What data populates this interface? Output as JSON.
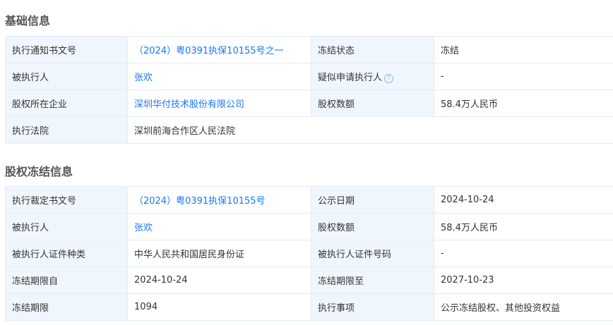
{
  "basic": {
    "title": "基础信息",
    "rows": [
      {
        "l1": "执行通知书文号",
        "v1": "（2024）粤0391执保10155号之一",
        "l2": "冻结状态",
        "v2": "冻结"
      },
      {
        "l1": "被执行人",
        "v1": "张欢",
        "l2": "疑似申请执行人",
        "v2": "-"
      },
      {
        "l1": "股权所在企业",
        "v1": "深圳华付技术股份有限公司",
        "l2": "股权数额",
        "v2": "58.4万人民币"
      },
      {
        "l1": "执行法院",
        "v1": "深圳前海合作区人民法院"
      }
    ],
    "help_icon": "question-circle-icon",
    "help_glyph": "?"
  },
  "freeze": {
    "title": "股权冻结信息",
    "rows": [
      {
        "l1": "执行裁定书文号",
        "v1": "（2024）粤0391执保10155号",
        "l2": "公示日期",
        "v2": "2024-10-24"
      },
      {
        "l1": "被执行人",
        "v1": "张欢",
        "l2": "股权数额",
        "v2": "58.4万人民币"
      },
      {
        "l1": "被执行人证件种类",
        "v1": "中华人民共和国居民身份证",
        "l2": "被执行人证件号码",
        "v2": "-"
      },
      {
        "l1": "冻结期限自",
        "v1": "2024-10-24",
        "l2": "冻结期限至",
        "v2": "2027-10-23"
      },
      {
        "l1": "冻结期限",
        "v1": "1094",
        "l2": "执行事项",
        "v2": "公示冻结股权、其他投资权益"
      }
    ]
  },
  "colors": {
    "link": "#1677ff",
    "label_bg": "#f0f6fd",
    "border": "#e4ecf4"
  }
}
